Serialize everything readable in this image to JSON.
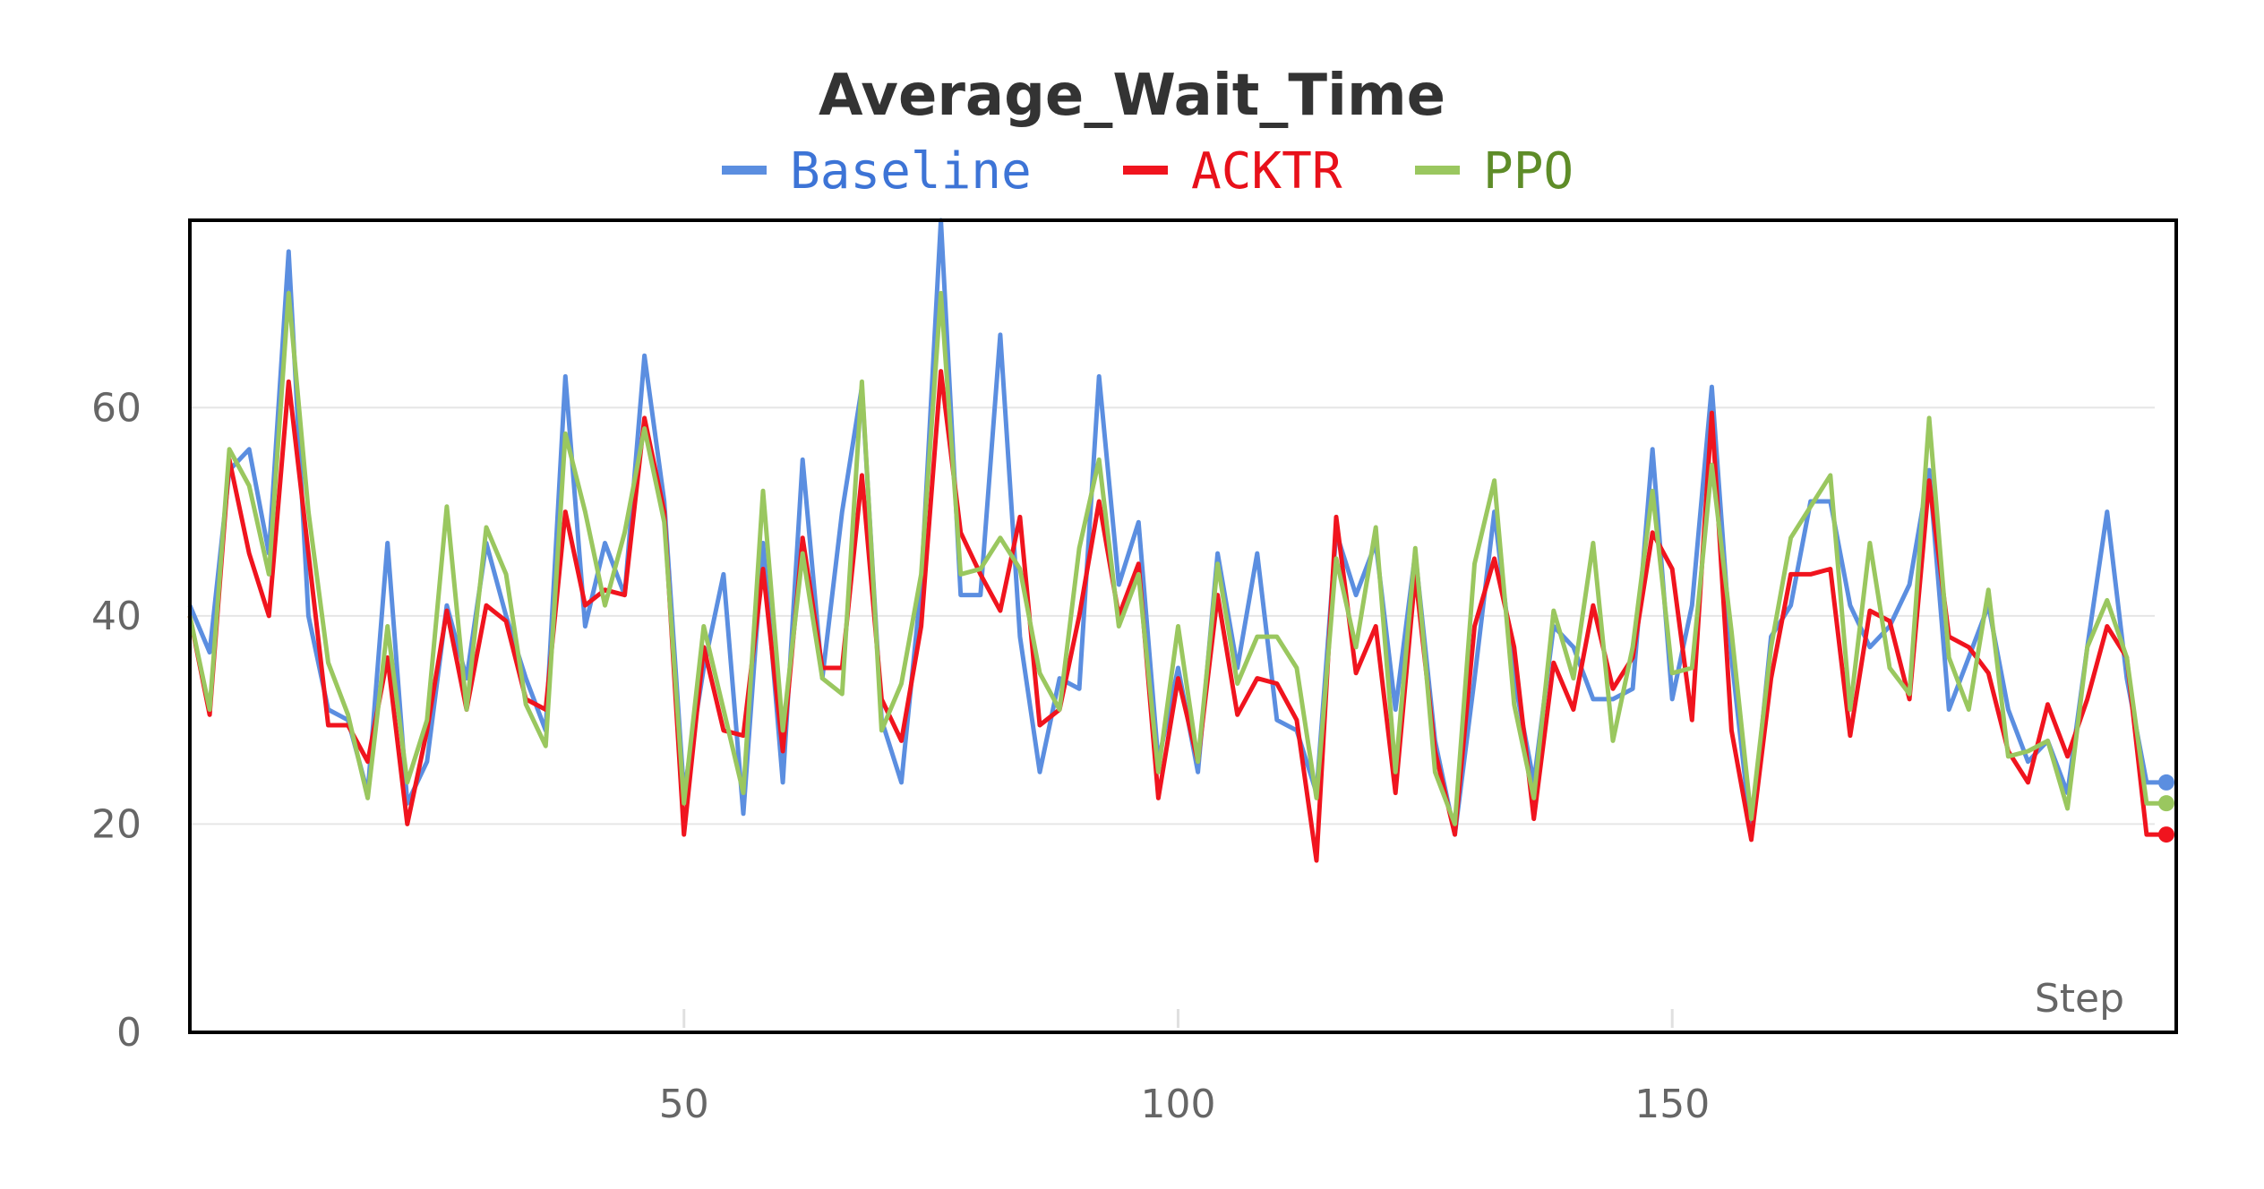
{
  "chart_data": {
    "type": "line",
    "title": "Average_Wait_Time",
    "xlabel": "Step",
    "ylabel": "",
    "legend_position": "top-center",
    "grid": true,
    "xlim": [
      0,
      201
    ],
    "ylim": [
      0,
      78
    ],
    "xticks": [
      50,
      100,
      150
    ],
    "yticks": [
      0,
      20,
      40,
      60
    ],
    "x": [
      0,
      2,
      4,
      6,
      8,
      10,
      12,
      14,
      16,
      18,
      20,
      22,
      24,
      26,
      28,
      30,
      32,
      34,
      36,
      38,
      40,
      42,
      44,
      46,
      48,
      50,
      52,
      54,
      56,
      58,
      60,
      62,
      64,
      66,
      68,
      70,
      72,
      74,
      76,
      78,
      80,
      82,
      84,
      86,
      88,
      90,
      92,
      94,
      96,
      98,
      100,
      102,
      104,
      106,
      108,
      110,
      112,
      114,
      116,
      118,
      120,
      122,
      124,
      126,
      128,
      130,
      132,
      134,
      136,
      138,
      140,
      142,
      144,
      146,
      148,
      150,
      152,
      154,
      156,
      158,
      160,
      162,
      164,
      166,
      168,
      170,
      172,
      174,
      176,
      178,
      180,
      182,
      184,
      186,
      188,
      190,
      192,
      194,
      196,
      198,
      200
    ],
    "series": [
      {
        "name": "Baseline",
        "color": "#5b8ee0",
        "values": [
          41,
          36.5,
          54,
          56,
          46,
          75,
          40,
          31,
          30,
          23,
          47,
          22,
          26,
          41,
          34,
          47,
          40,
          34,
          29,
          63,
          39,
          47,
          42,
          65,
          51,
          23,
          35,
          44,
          21,
          47,
          24,
          55,
          34,
          50,
          62,
          30,
          24,
          43,
          78,
          42,
          42,
          67,
          38,
          25,
          34,
          33,
          63,
          43,
          49,
          26,
          35,
          25,
          46,
          35,
          46,
          30,
          29,
          23,
          48,
          42,
          47,
          31,
          46,
          28,
          19,
          34,
          50,
          34,
          24,
          39,
          37,
          32,
          32,
          33,
          56,
          32,
          41,
          62,
          36,
          19,
          38,
          41,
          51,
          51,
          41,
          37,
          39,
          43,
          54,
          31,
          36,
          41,
          31,
          26,
          28,
          23,
          37,
          50,
          34,
          24,
          24
        ],
        "end_value": 24
      },
      {
        "name": "ACKTR",
        "color": "#f0141e",
        "values": [
          40,
          30.5,
          55,
          46,
          40,
          62.5,
          46,
          29.5,
          29.5,
          26,
          36,
          20,
          29,
          40.5,
          31,
          41,
          39.5,
          32,
          31,
          50,
          41,
          42.5,
          42,
          59,
          50,
          19,
          37,
          29,
          28.5,
          44.5,
          27,
          47.5,
          35,
          35,
          53.5,
          32,
          28,
          39,
          63.5,
          48,
          44,
          40.5,
          49.5,
          29.5,
          31,
          40,
          51,
          40,
          45,
          22.5,
          34,
          26,
          42,
          30.5,
          34,
          33.5,
          30,
          16.5,
          49.5,
          34.5,
          39,
          23,
          44,
          27,
          19,
          39,
          45.5,
          37,
          20.5,
          35.5,
          31,
          41,
          33,
          36,
          48,
          44.5,
          30,
          59.5,
          29,
          18.5,
          34,
          44,
          44,
          44.5,
          28.5,
          40.5,
          39.5,
          32,
          53,
          38,
          37,
          34.5,
          27,
          24,
          31.5,
          26.5,
          32,
          39,
          36,
          19,
          19
        ],
        "end_value": 19
      },
      {
        "name": "PPO",
        "color": "#9ac75f",
        "values": [
          40,
          31,
          56,
          52.5,
          44,
          71,
          50,
          35.5,
          30.5,
          22.5,
          39,
          24,
          30,
          50.5,
          31,
          48.5,
          44,
          31.5,
          27.5,
          57.5,
          50,
          41,
          48,
          58,
          49,
          22,
          39,
          31,
          23,
          52,
          29,
          46,
          34,
          32.5,
          62.5,
          29,
          33.5,
          44,
          71,
          44,
          44.5,
          47.5,
          44.5,
          34.5,
          31,
          46.5,
          55,
          39,
          44,
          25,
          39,
          26,
          45,
          33.5,
          38,
          38,
          35,
          22.5,
          45.5,
          37,
          48.5,
          25,
          46.5,
          25,
          20,
          45,
          53,
          31.5,
          22.5,
          40.5,
          34,
          47,
          28,
          37,
          52,
          34.5,
          35,
          54.5,
          38.5,
          20.5,
          37,
          47.5,
          50.5,
          53.5,
          31,
          47,
          35,
          32.5,
          59,
          36,
          31,
          42.5,
          26.5,
          27,
          28,
          21.5,
          37,
          41.5,
          36,
          22,
          22
        ],
        "end_value": 22
      }
    ]
  }
}
